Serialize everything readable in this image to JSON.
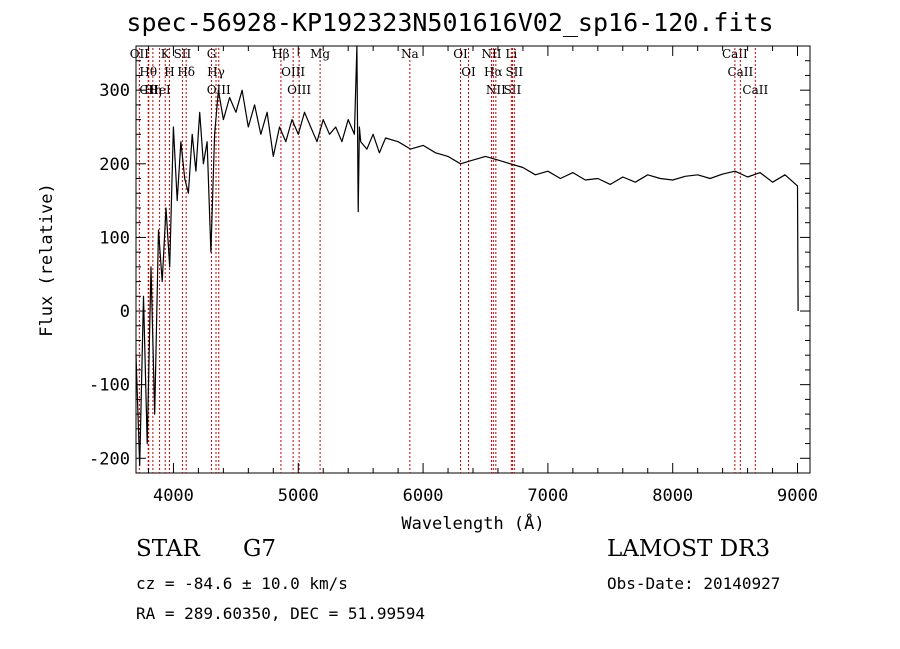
{
  "title": "spec-56928-KP192323N501616V02_sp16-120.fits",
  "info": {
    "object_class": "STAR",
    "subclass": "G7",
    "survey": "LAMOST DR3",
    "cz": "cz = -84.6 ± 10.0 km/s",
    "obs_date": "Obs-Date: 20140927",
    "radec": "RA = 289.60350, DEC =  51.99594"
  },
  "chart_data": {
    "type": "line",
    "title": "spec-56928-KP192323N501616V02_sp16-120.fits",
    "xlabel": "Wavelength (Å)",
    "ylabel": "Flux (relative)",
    "xlim": [
      3700,
      9100
    ],
    "ylim": [
      -220,
      360
    ],
    "x_ticks": [
      4000,
      5000,
      6000,
      7000,
      8000,
      9000
    ],
    "y_ticks": [
      -200,
      -100,
      0,
      100,
      200,
      300
    ],
    "series": [
      {
        "name": "flux",
        "x": [
          3700,
          3730,
          3760,
          3790,
          3820,
          3850,
          3880,
          3910,
          3940,
          3970,
          4000,
          4030,
          4060,
          4090,
          4120,
          4150,
          4180,
          4210,
          4240,
          4270,
          4300,
          4330,
          4360,
          4400,
          4450,
          4500,
          4550,
          4600,
          4650,
          4700,
          4750,
          4800,
          4850,
          4900,
          4950,
          5000,
          5050,
          5100,
          5150,
          5200,
          5250,
          5300,
          5350,
          5400,
          5450,
          5470,
          5480,
          5490,
          5500,
          5550,
          5600,
          5650,
          5700,
          5800,
          5900,
          6000,
          6100,
          6200,
          6300,
          6400,
          6500,
          6600,
          6700,
          6800,
          6900,
          7000,
          7100,
          7200,
          7300,
          7400,
          7500,
          7600,
          7700,
          7800,
          7900,
          8000,
          8100,
          8200,
          8300,
          8400,
          8500,
          8600,
          8700,
          8800,
          8900,
          9000,
          9005
        ],
        "y": [
          -60,
          -210,
          20,
          -180,
          60,
          -140,
          110,
          40,
          140,
          60,
          250,
          150,
          230,
          180,
          160,
          240,
          190,
          270,
          200,
          230,
          80,
          240,
          300,
          260,
          290,
          270,
          300,
          250,
          280,
          240,
          270,
          210,
          250,
          230,
          260,
          240,
          270,
          250,
          230,
          260,
          240,
          250,
          230,
          260,
          240,
          360,
          135,
          250,
          230,
          220,
          240,
          215,
          235,
          230,
          220,
          225,
          215,
          210,
          200,
          205,
          210,
          205,
          200,
          195,
          185,
          190,
          180,
          188,
          178,
          180,
          172,
          182,
          175,
          185,
          180,
          178,
          183,
          185,
          180,
          186,
          190,
          182,
          188,
          175,
          185,
          170,
          0
        ]
      }
    ],
    "line_markers": [
      {
        "label": "Hθ",
        "wavelength": 3798
      },
      {
        "label": "CII",
        "wavelength": 3802
      },
      {
        "label": "OII",
        "wavelength": 3727
      },
      {
        "label": "Hη",
        "wavelength": 3835
      },
      {
        "label": "HeI",
        "wavelength": 3889
      },
      {
        "label": "K",
        "wavelength": 3934
      },
      {
        "label": "H",
        "wavelength": 3968
      },
      {
        "label": "SII",
        "wavelength": 4072
      },
      {
        "label": "Hδ",
        "wavelength": 4102
      },
      {
        "label": "G",
        "wavelength": 4305
      },
      {
        "label": "Hγ",
        "wavelength": 4341
      },
      {
        "label": "OIII",
        "wavelength": 4363
      },
      {
        "label": "Hβ",
        "wavelength": 4861
      },
      {
        "label": "OIII",
        "wavelength": 4959
      },
      {
        "label": "OIII",
        "wavelength": 5007
      },
      {
        "label": "Mg",
        "wavelength": 5175
      },
      {
        "label": "Na",
        "wavelength": 5894
      },
      {
        "label": "OI",
        "wavelength": 6300
      },
      {
        "label": "OI",
        "wavelength": 6364
      },
      {
        "label": "NII",
        "wavelength": 6548
      },
      {
        "label": "Hα",
        "wavelength": 6563
      },
      {
        "label": "NII",
        "wavelength": 6583
      },
      {
        "label": "Li",
        "wavelength": 6707
      },
      {
        "label": "SII",
        "wavelength": 6716
      },
      {
        "label": "SII",
        "wavelength": 6731
      },
      {
        "label": "CaII",
        "wavelength": 8498
      },
      {
        "label": "CaII",
        "wavelength": 8542
      },
      {
        "label": "CaII",
        "wavelength": 8662
      }
    ]
  }
}
